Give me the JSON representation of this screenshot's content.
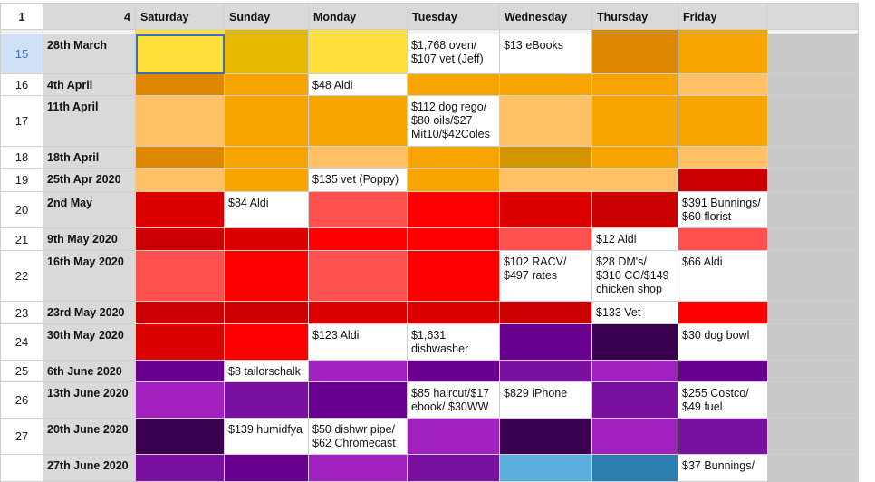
{
  "header": {
    "corner": "1",
    "week_label": "4",
    "days": [
      "Saturday",
      "Sunday",
      "Monday",
      "Tuesday",
      "Wednesday",
      "Thursday",
      "Friday"
    ]
  },
  "colors": {
    "header_bg": "#d9d9d9",
    "empty_col_bg": "#c8c8c8",
    "yellow_light": "#ffe03a",
    "yellow_dark": "#e6b800",
    "orange_dark": "#e08700",
    "orange": "#f7a300",
    "orange_light": "#ffc066",
    "red": "#ff0000",
    "red_dark": "#cc0000",
    "red_light": "#ff5050",
    "purple": "#a020c0",
    "purple_dark": "#6a0090",
    "purple_deep": "#3a0050",
    "blue": "#5aaedc"
  },
  "rows": [
    {
      "num": "15",
      "date": "28th March",
      "height": 44,
      "selected": true,
      "cells": [
        {
          "bg": "#ffe03a",
          "text": "",
          "selected": true
        },
        {
          "bg": "#e6b800",
          "text": ""
        },
        {
          "bg": "#ffe03a",
          "text": ""
        },
        {
          "bg": "#ffffff",
          "text": "$1,768 oven/\n$107 vet (Jeff)"
        },
        {
          "bg": "#ffffff",
          "text": "$13 eBooks"
        },
        {
          "bg": "#e08700",
          "text": ""
        },
        {
          "bg": "#f7a300",
          "text": ""
        }
      ]
    },
    {
      "num": "16",
      "date": "4th April",
      "height": 24,
      "cells": [
        {
          "bg": "#e08700",
          "text": ""
        },
        {
          "bg": "#f7a300",
          "text": ""
        },
        {
          "bg": "#ffffff",
          "text": "$48 Aldi"
        },
        {
          "bg": "#f7a300",
          "text": ""
        },
        {
          "bg": "#f7a300",
          "text": ""
        },
        {
          "bg": "#f7a300",
          "text": ""
        },
        {
          "bg": "#ffc066",
          "text": ""
        }
      ]
    },
    {
      "num": "17",
      "date": "11th April",
      "height": 56,
      "cells": [
        {
          "bg": "#ffc066",
          "text": ""
        },
        {
          "bg": "#f7a300",
          "text": ""
        },
        {
          "bg": "#f7a300",
          "text": ""
        },
        {
          "bg": "#ffffff",
          "text": "$112 dog rego/\n$80 oils/$27\nMit10/$42Coles"
        },
        {
          "bg": "#ffc066",
          "text": ""
        },
        {
          "bg": "#f7a300",
          "text": ""
        },
        {
          "bg": "#f7a300",
          "text": ""
        }
      ]
    },
    {
      "num": "18",
      "date": "18th April",
      "height": 24,
      "cells": [
        {
          "bg": "#e08700",
          "text": ""
        },
        {
          "bg": "#f7a300",
          "text": ""
        },
        {
          "bg": "#ffc066",
          "text": ""
        },
        {
          "bg": "#f7a300",
          "text": ""
        },
        {
          "bg": "#d49400",
          "text": ""
        },
        {
          "bg": "#f7a300",
          "text": ""
        },
        {
          "bg": "#ffc066",
          "text": ""
        }
      ]
    },
    {
      "num": "19",
      "date": "25th Apr 2020",
      "height": 26,
      "cells": [
        {
          "bg": "#ffc066",
          "text": ""
        },
        {
          "bg": "#f7a300",
          "text": ""
        },
        {
          "bg": "#ffffff",
          "text": "$135 vet (Poppy)"
        },
        {
          "bg": "#f7a300",
          "text": ""
        },
        {
          "bg": "#ffc066",
          "text": ""
        },
        {
          "bg": "#ffc066",
          "text": ""
        },
        {
          "bg": "#cc0000",
          "text": ""
        }
      ]
    },
    {
      "num": "20",
      "date": "2nd May",
      "height": 40,
      "cells": [
        {
          "bg": "#dd0000",
          "text": ""
        },
        {
          "bg": "#ffffff",
          "text": "$84 Aldi"
        },
        {
          "bg": "#ff5050",
          "text": ""
        },
        {
          "bg": "#ff0000",
          "text": ""
        },
        {
          "bg": "#dd0000",
          "text": ""
        },
        {
          "bg": "#cc0000",
          "text": ""
        },
        {
          "bg": "#ffffff",
          "text": "$391 Bunnings/\n$60 florist"
        }
      ]
    },
    {
      "num": "21",
      "date": "9th May 2020",
      "height": 25,
      "cells": [
        {
          "bg": "#cc0000",
          "text": ""
        },
        {
          "bg": "#dd0000",
          "text": ""
        },
        {
          "bg": "#ff0000",
          "text": ""
        },
        {
          "bg": "#ff0000",
          "text": ""
        },
        {
          "bg": "#ff5050",
          "text": ""
        },
        {
          "bg": "#ffffff",
          "text": "$12 Aldi"
        },
        {
          "bg": "#ff5050",
          "text": ""
        }
      ]
    },
    {
      "num": "22",
      "date": "16th May 2020",
      "height": 56,
      "cells": [
        {
          "bg": "#ff5050",
          "text": ""
        },
        {
          "bg": "#ff0000",
          "text": ""
        },
        {
          "bg": "#ff5050",
          "text": ""
        },
        {
          "bg": "#ff0000",
          "text": ""
        },
        {
          "bg": "#ffffff",
          "text": "$102 RACV/\n$497 rates"
        },
        {
          "bg": "#ffffff",
          "text": "$28 DM's/\n$310 CC/$149\nchicken shop"
        },
        {
          "bg": "#ffffff",
          "text": "$66 Aldi"
        }
      ]
    },
    {
      "num": "23",
      "date": "23rd May 2020",
      "height": 25,
      "cells": [
        {
          "bg": "#cc0000",
          "text": ""
        },
        {
          "bg": "#cc0000",
          "text": ""
        },
        {
          "bg": "#dd0000",
          "text": ""
        },
        {
          "bg": "#dd0000",
          "text": ""
        },
        {
          "bg": "#cc0000",
          "text": ""
        },
        {
          "bg": "#ffffff",
          "text": "$133 Vet"
        },
        {
          "bg": "#ff0000",
          "text": ""
        }
      ]
    },
    {
      "num": "24",
      "date": "30th May 2020",
      "height": 40,
      "cells": [
        {
          "bg": "#dd0000",
          "text": ""
        },
        {
          "bg": "#ff0000",
          "text": ""
        },
        {
          "bg": "#ffffff",
          "text": "$123 Aldi"
        },
        {
          "bg": "#ffffff",
          "text": "$1,631\ndishwasher"
        },
        {
          "bg": "#6a0090",
          "text": ""
        },
        {
          "bg": "#3a0050",
          "text": ""
        },
        {
          "bg": "#ffffff",
          "text": "$30 dog bowl"
        }
      ]
    },
    {
      "num": "25",
      "date": "6th June 2020",
      "height": 24,
      "cells": [
        {
          "bg": "#6a0090",
          "text": ""
        },
        {
          "bg": "#ffffff",
          "text": "$8 tailorschalk"
        },
        {
          "bg": "#a020c0",
          "text": ""
        },
        {
          "bg": "#6a0090",
          "text": ""
        },
        {
          "bg": "#7a10a0",
          "text": ""
        },
        {
          "bg": "#a020c0",
          "text": ""
        },
        {
          "bg": "#6a0090",
          "text": ""
        }
      ]
    },
    {
      "num": "26",
      "date": "13th June 2020",
      "height": 40,
      "cells": [
        {
          "bg": "#a020c0",
          "text": ""
        },
        {
          "bg": "#7a10a0",
          "text": ""
        },
        {
          "bg": "#6a0090",
          "text": ""
        },
        {
          "bg": "#ffffff",
          "text": "$85 haircut/$17\nebook/ $30WW"
        },
        {
          "bg": "#ffffff",
          "text": "$829 iPhone"
        },
        {
          "bg": "#7a10a0",
          "text": ""
        },
        {
          "bg": "#ffffff",
          "text": "$255 Costco/\n$49 fuel"
        }
      ]
    },
    {
      "num": "27",
      "date": "20th June 2020",
      "height": 40,
      "cells": [
        {
          "bg": "#3a0050",
          "text": ""
        },
        {
          "bg": "#ffffff",
          "text": "$139 humidfya"
        },
        {
          "bg": "#ffffff",
          "text": "$50 dishwr pipe/\n$62 Chromecast"
        },
        {
          "bg": "#a020c0",
          "text": ""
        },
        {
          "bg": "#3a0050",
          "text": ""
        },
        {
          "bg": "#a020c0",
          "text": ""
        },
        {
          "bg": "#7a10a0",
          "text": ""
        }
      ]
    },
    {
      "num": "",
      "date": "27th June 2020",
      "height": 30,
      "cells": [
        {
          "bg": "#7a10a0",
          "text": ""
        },
        {
          "bg": "#6a0090",
          "text": ""
        },
        {
          "bg": "#a020c0",
          "text": ""
        },
        {
          "bg": "#7a10a0",
          "text": ""
        },
        {
          "bg": "#5aaedc",
          "text": ""
        },
        {
          "bg": "#2b7fb0",
          "text": ""
        },
        {
          "bg": "#ffffff",
          "text": "$37 Bunnings/"
        }
      ]
    }
  ]
}
